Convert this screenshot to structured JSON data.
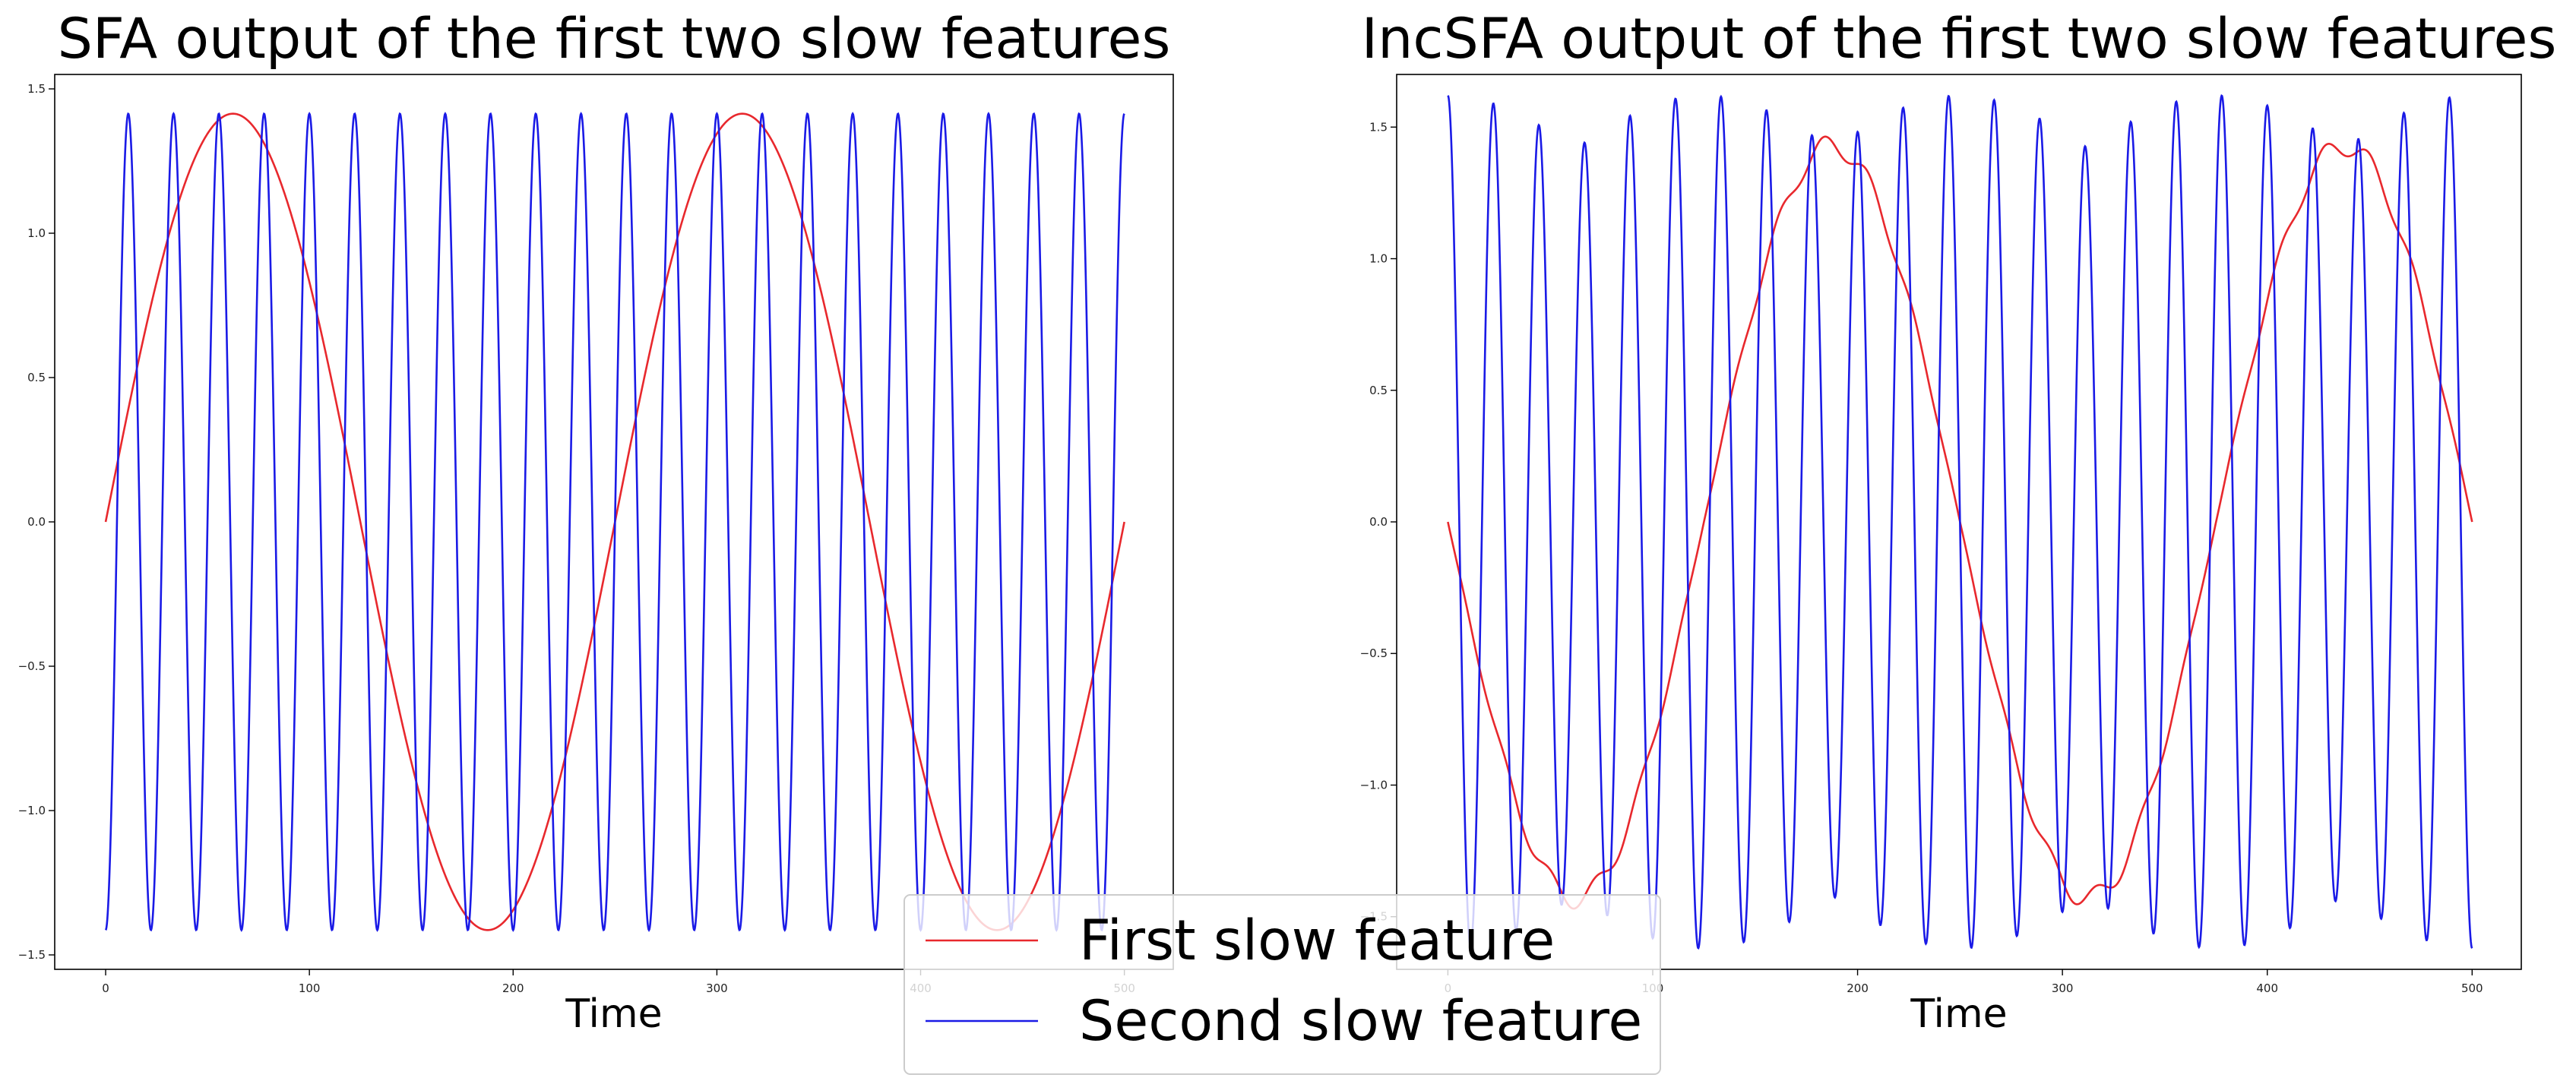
{
  "chart_data": [
    {
      "type": "line",
      "title": "SFA output of the first two slow features",
      "xlabel": "Time",
      "ylabel": "",
      "xlim": [
        -25,
        524
      ],
      "ylim": [
        -1.55,
        1.55
      ],
      "xticks": [
        0,
        100,
        200,
        300,
        400,
        500
      ],
      "xtick_labels": [
        "0",
        "100",
        "200",
        "300",
        "400",
        "500"
      ],
      "yticks": [
        -1.5,
        -1.0,
        -0.5,
        0.0,
        0.5,
        1.0,
        1.5
      ],
      "ytick_labels": [
        "−1.5",
        "−1.0",
        "−0.5",
        "0.0",
        "0.5",
        "1.0",
        "1.5"
      ],
      "grid": false,
      "x_range": [
        0,
        500
      ],
      "series": [
        {
          "name": "First slow feature",
          "color": "#e8282d",
          "amplitude": 1.414,
          "cycles": 2,
          "phase": 0,
          "function": "sine"
        },
        {
          "name": "Second slow feature",
          "color": "#1a1ae6",
          "amplitude": 1.414,
          "cycles": 22.5,
          "phase": 0,
          "function": "negative-cosine"
        }
      ]
    },
    {
      "type": "line",
      "title": "IncSFA output of the first two slow features",
      "xlabel": "Time",
      "ylabel": "",
      "xlim": [
        -25,
        524
      ],
      "ylim": [
        -1.7,
        1.7
      ],
      "xticks": [
        0,
        100,
        200,
        300,
        400,
        500
      ],
      "xtick_labels": [
        "0",
        "100",
        "200",
        "300",
        "400",
        "500"
      ],
      "yticks": [
        -1.5,
        -1.0,
        -0.5,
        0.0,
        0.5,
        1.0,
        1.5
      ],
      "ytick_labels": [
        "−1.5",
        "−1.0",
        "−0.5",
        "0.0",
        "0.5",
        "1.0",
        "1.5"
      ],
      "grid": false,
      "x_range": [
        0,
        500
      ],
      "series": [
        {
          "name": "First slow feature",
          "color": "#e8282d",
          "amplitude": 1.43,
          "cycles": 2,
          "phase": 180,
          "function": "sine-with-ripple"
        },
        {
          "name": "Second slow feature",
          "color": "#1a1ae6",
          "amplitude": 1.6,
          "cycles": 22.5,
          "phase": 0,
          "function": "cosine-amplitude-modulated"
        }
      ]
    }
  ],
  "legend": {
    "placement": "bottom-center",
    "entries": [
      {
        "label": "First slow feature",
        "color": "#e8282d"
      },
      {
        "label": "Second slow feature",
        "color": "#1a1ae6"
      }
    ]
  }
}
